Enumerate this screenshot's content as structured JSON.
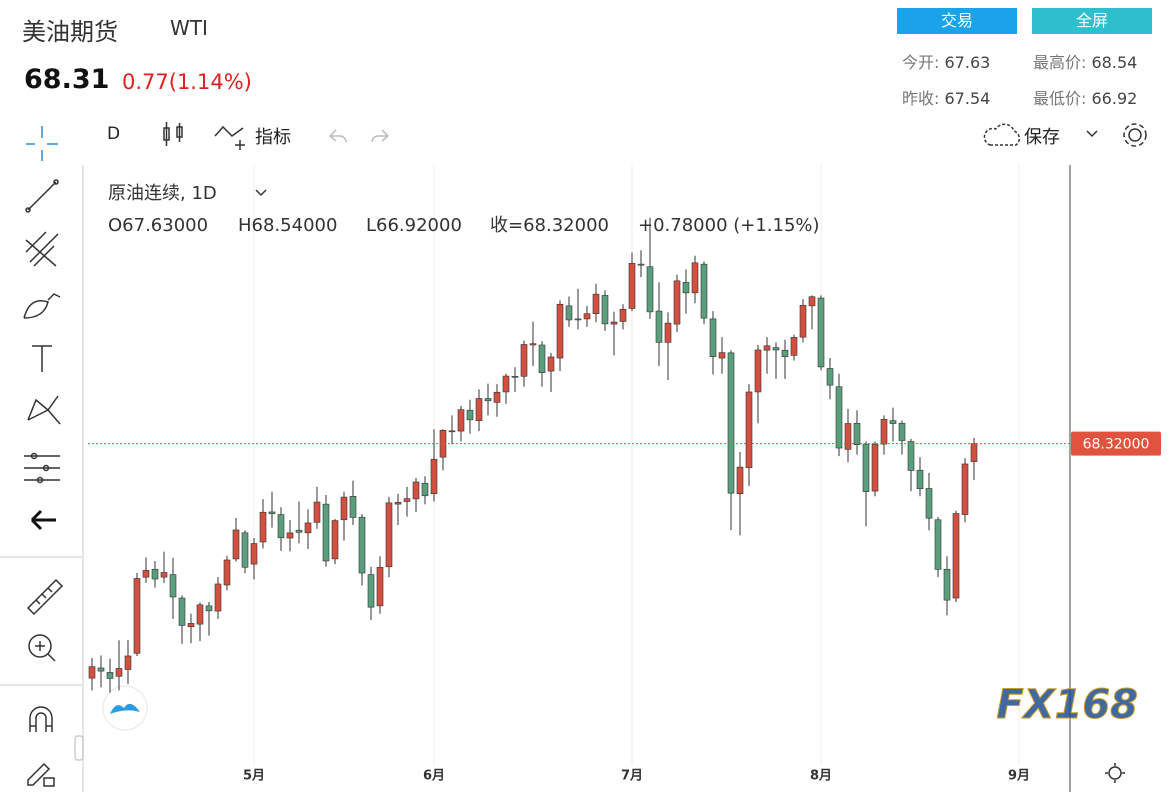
{
  "header": {
    "title": "美油期货",
    "symbol": "WTI",
    "price": 68.31,
    "change": "0.77(1.14%)",
    "buttons": [
      "交易",
      "全屏"
    ],
    "stats": [
      {
        "label": "今开:",
        "value": 67.63
      },
      {
        "label": "最高价:",
        "value": 68.54
      },
      {
        "label": "昨收:",
        "value": 67.54
      },
      {
        "label": "最低价:",
        "value": 66.92
      }
    ]
  },
  "toolbar": {
    "interval": "D",
    "indicators": "指标",
    "save": "保存"
  },
  "watermark": "FX168",
  "chart_data": {
    "type": "candlestick",
    "legend_title": "原油连续, 1D",
    "legend": [
      "O67.63000",
      "H68.54000",
      "L66.92000",
      "收=68.32000",
      "+0.78000 (+1.15%)"
    ],
    "categories": [
      null,
      null,
      null,
      null,
      null,
      null,
      null,
      null,
      null,
      null,
      null,
      null,
      null,
      null,
      null,
      null,
      null,
      null,
      "5月",
      null,
      null,
      null,
      null,
      null,
      null,
      null,
      null,
      null,
      null,
      null,
      null,
      null,
      null,
      null,
      null,
      null,
      null,
      null,
      "6月",
      null,
      null,
      null,
      null,
      null,
      null,
      null,
      null,
      null,
      null,
      null,
      null,
      null,
      null,
      null,
      null,
      null,
      null,
      null,
      null,
      null,
      "7月",
      null,
      null,
      null,
      null,
      null,
      null,
      null,
      null,
      null,
      null,
      null,
      null,
      null,
      null,
      null,
      null,
      null,
      null,
      null,
      null,
      "8月",
      null,
      null,
      null,
      null,
      null,
      null,
      null,
      null,
      null,
      null,
      null,
      null,
      null,
      null,
      null,
      null,
      null,
      null,
      null,
      null,
      null,
      "9月"
    ],
    "open": [
      59.33,
      59.72,
      59.55,
      59.4,
      59.66,
      60.28,
      63.2,
      63.5,
      63.2,
      63.3,
      62.4,
      61.3,
      61.4,
      62.1,
      61.9,
      62.9,
      63.9,
      64.9,
      63.7,
      64.55,
      65.7,
      65.6,
      64.7,
      65.0,
      64.9,
      65.3,
      66.0,
      63.9,
      65.4,
      66.3,
      65.5,
      63.3,
      62.1,
      63.6,
      66.0,
      66.1,
      66.2,
      66.8,
      66.4,
      67.8,
      68.8,
      68.8,
      69.6,
      69.2,
      70.05,
      69.9,
      70.3,
      70.9,
      70.9,
      72.1,
      72.1,
      71.1,
      71.6,
      73.6,
      73.1,
      73.1,
      73.3,
      74.0,
      72.9,
      73.0,
      73.5,
      75.2,
      75.1,
      73.4,
      72.2,
      72.9,
      74.5,
      74.1,
      75.2,
      73.1,
      71.6,
      71.8,
      66.4,
      67.4,
      70.3,
      71.9,
      72.0,
      71.9,
      71.7,
      72.4,
      73.6,
      73.9,
      71.2,
      70.5,
      68.1,
      69.1,
      68.3,
      66.5,
      68.3,
      69.2,
      69.1,
      68.4,
      67.3,
      66.6,
      65.4,
      63.5,
      62.4,
      65.6,
      67.63,
      null,
      null,
      null,
      null,
      null
    ],
    "high": [
      60.1,
      60.2,
      60.08,
      60.78,
      60.79,
      63.36,
      63.96,
      63.82,
      64.18,
      63.94,
      62.5,
      61.8,
      62.23,
      62.25,
      63.2,
      64.02,
      65.47,
      65.0,
      64.7,
      66.19,
      66.48,
      65.88,
      65.39,
      66.1,
      65.8,
      66.66,
      66.35,
      65.43,
      66.48,
      66.9,
      65.62,
      63.6,
      64.0,
      66.28,
      66.4,
      66.66,
      67.0,
      67.07,
      68.87,
      68.87,
      69.4,
      69.76,
      70.0,
      70.4,
      70.62,
      70.6,
      71.0,
      71.25,
      72.27,
      72.99,
      72.25,
      71.8,
      73.81,
      73.96,
      74.25,
      73.6,
      74.45,
      74.2,
      73.38,
      73.66,
      75.65,
      75.73,
      76.98,
      74.5,
      73.35,
      74.8,
      75.0,
      75.52,
      75.3,
      73.4,
      72.4,
      71.9,
      68.0,
      70.6,
      72.1,
      72.4,
      72.2,
      72.3,
      72.5,
      73.86,
      74.0,
      74.0,
      71.6,
      71.0,
      69.65,
      69.6,
      68.4,
      68.4,
      69.4,
      69.7,
      69.2,
      68.5,
      67.8,
      67.2,
      65.5,
      64.0,
      65.75,
      67.76,
      68.54,
      null,
      null,
      null,
      null,
      null
    ],
    "low": [
      58.86,
      58.98,
      58.77,
      58.86,
      59.1,
      60.18,
      62.98,
      62.8,
      62.98,
      61.6,
      60.65,
      60.67,
      60.75,
      60.96,
      61.6,
      62.7,
      63.8,
      63.35,
      63.11,
      64.3,
      65.1,
      64.21,
      64.19,
      64.5,
      64.28,
      65.05,
      63.6,
      63.7,
      64.6,
      65.2,
      62.88,
      61.56,
      61.8,
      63.2,
      65.2,
      65.52,
      65.7,
      65.99,
      66.1,
      67.3,
      68.3,
      68.4,
      68.7,
      68.8,
      69.4,
      69.35,
      69.85,
      70.3,
      70.5,
      71.3,
      70.5,
      70.3,
      71.1,
      72.8,
      72.7,
      72.8,
      72.97,
      72.64,
      71.7,
      72.7,
      73.4,
      74.7,
      73.1,
      71.3,
      70.76,
      72.6,
      73.3,
      73.7,
      72.9,
      70.97,
      71.0,
      65.01,
      64.8,
      66.7,
      69.1,
      71.0,
      70.8,
      70.8,
      71.5,
      72.2,
      72.7,
      71.13,
      70.02,
      67.84,
      67.6,
      67.9,
      65.15,
      66.3,
      67.9,
      68.4,
      67.9,
      66.5,
      66.3,
      65.0,
      63.2,
      61.74,
      62.25,
      65.3,
      66.92,
      null,
      null,
      null,
      null,
      null
    ],
    "close": [
      59.77,
      59.6,
      59.32,
      59.7,
      60.18,
      63.15,
      63.46,
      63.13,
      63.38,
      62.44,
      61.35,
      61.43,
      62.14,
      61.91,
      62.94,
      63.86,
      65.01,
      63.58,
      64.49,
      65.69,
      65.63,
      64.71,
      64.9,
      64.92,
      65.28,
      66.08,
      63.82,
      65.37,
      66.27,
      65.49,
      63.36,
      62.05,
      63.58,
      66.05,
      66.07,
      66.21,
      66.85,
      66.32,
      67.72,
      68.83,
      68.81,
      69.62,
      69.23,
      70.05,
      69.96,
      70.29,
      70.91,
      70.88,
      72.12,
      72.15,
      71.04,
      71.64,
      73.66,
      73.06,
      73.08,
      73.3,
      74.05,
      72.91,
      72.98,
      73.47,
      75.23,
      75.16,
      73.37,
      72.2,
      72.94,
      74.56,
      74.1,
      75.25,
      73.13,
      71.65,
      71.81,
      66.42,
      67.42,
      70.3,
      71.91,
      72.07,
      71.91,
      71.65,
      72.39,
      73.62,
      73.95,
      71.26,
      70.56,
      68.15,
      69.09,
      68.28,
      66.48,
      68.29,
      69.25,
      69.09,
      68.44,
      67.29,
      66.59,
      65.46,
      63.5,
      62.32,
      65.64,
      67.54,
      68.32,
      null,
      null,
      null,
      null,
      null
    ],
    "up_color": "#d2503f",
    "down_color": "#5a9e7d",
    "ylim": [
      56,
      79
    ],
    "grid": true,
    "last_price": {
      "value": 68.32,
      "label": "68.32000"
    }
  }
}
